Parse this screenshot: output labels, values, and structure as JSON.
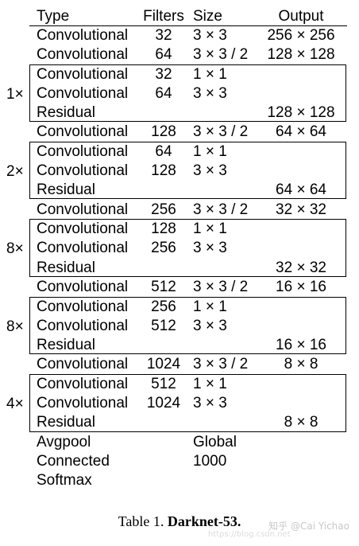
{
  "table": {
    "headers": {
      "type": "Type",
      "filters": "Filters",
      "size": "Size",
      "output": "Output"
    },
    "rows": [
      {
        "type": "Convolutional",
        "filters": "32",
        "size": "3 × 3",
        "output": "256 × 256"
      },
      {
        "type": "Convolutional",
        "filters": "64",
        "size": "3 × 3 / 2",
        "output": "128 × 128"
      },
      {
        "type": "Convolutional",
        "filters": "32",
        "size": "1 × 1",
        "output": ""
      },
      {
        "type": "Convolutional",
        "filters": "64",
        "size": "3 × 3",
        "output": ""
      },
      {
        "type": "Residual",
        "filters": "",
        "size": "",
        "output": "128 × 128"
      },
      {
        "type": "Convolutional",
        "filters": "128",
        "size": "3 × 3 / 2",
        "output": "64 × 64"
      },
      {
        "type": "Convolutional",
        "filters": "64",
        "size": "1 × 1",
        "output": ""
      },
      {
        "type": "Convolutional",
        "filters": "128",
        "size": "3 × 3",
        "output": ""
      },
      {
        "type": "Residual",
        "filters": "",
        "size": "",
        "output": "64 × 64"
      },
      {
        "type": "Convolutional",
        "filters": "256",
        "size": "3 × 3 / 2",
        "output": "32 × 32"
      },
      {
        "type": "Convolutional",
        "filters": "128",
        "size": "1 × 1",
        "output": ""
      },
      {
        "type": "Convolutional",
        "filters": "256",
        "size": "3 × 3",
        "output": ""
      },
      {
        "type": "Residual",
        "filters": "",
        "size": "",
        "output": "32 × 32"
      },
      {
        "type": "Convolutional",
        "filters": "512",
        "size": "3 × 3 / 2",
        "output": "16 × 16"
      },
      {
        "type": "Convolutional",
        "filters": "256",
        "size": "1 × 1",
        "output": ""
      },
      {
        "type": "Convolutional",
        "filters": "512",
        "size": "3 × 3",
        "output": ""
      },
      {
        "type": "Residual",
        "filters": "",
        "size": "",
        "output": "16 × 16"
      },
      {
        "type": "Convolutional",
        "filters": "1024",
        "size": "3 × 3 / 2",
        "output": "8 × 8"
      },
      {
        "type": "Convolutional",
        "filters": "512",
        "size": "1 × 1",
        "output": ""
      },
      {
        "type": "Convolutional",
        "filters": "1024",
        "size": "3 × 3",
        "output": ""
      },
      {
        "type": "Residual",
        "filters": "",
        "size": "",
        "output": "8 × 8"
      },
      {
        "type": "Avgpool",
        "filters": "",
        "size": "Global",
        "output": ""
      },
      {
        "type": "Connected",
        "filters": "",
        "size": "1000",
        "output": ""
      },
      {
        "type": "Softmax",
        "filters": "",
        "size": "",
        "output": ""
      }
    ],
    "multipliers": [
      "1×",
      "2×",
      "8×",
      "8×",
      "4×"
    ]
  },
  "caption": {
    "prefix": "Table 1.",
    "title": "Darknet-53."
  },
  "watermark": {
    "text": "知乎 @Cai Yichao",
    "url": "https://blog.csdn.net"
  }
}
